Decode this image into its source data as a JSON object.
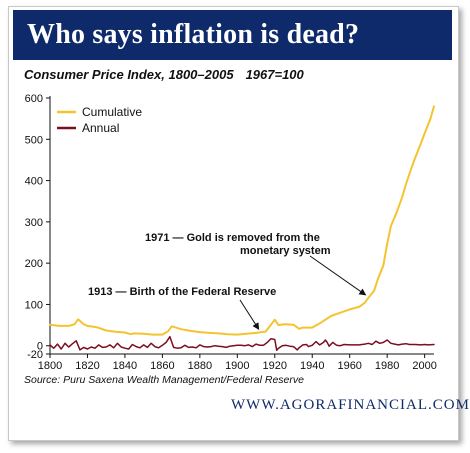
{
  "banner": {
    "title": "Who says inflation is dead?"
  },
  "header": {
    "chart_title": "Consumer Price Index, 1800–2005",
    "base_note": "1967=100"
  },
  "source": "Source: Puru Saxena Wealth Management/Federal Reserve",
  "footer": {
    "url": "WWW.AGORAFINANCIAL.COM"
  },
  "colors": {
    "banner": "#0f2a6b",
    "cumulative": "#f4c430",
    "annual": "#7a0f1f",
    "footer": "#0f2a6b"
  },
  "chart_data": {
    "type": "line",
    "title": "Consumer Price Index, 1800–2005",
    "subtitle": "1967=100",
    "xlabel": "",
    "ylabel": "",
    "xlim": [
      1800,
      2005
    ],
    "ylim": [
      -20,
      600
    ],
    "x_ticks": [
      1800,
      1820,
      1840,
      1860,
      1880,
      1900,
      1920,
      1940,
      1960,
      1980,
      2000
    ],
    "y_ticks": [
      -20,
      0,
      100,
      200,
      300,
      400,
      500,
      600
    ],
    "legend": {
      "position": "top-left",
      "entries": [
        "Cumulative",
        "Annual"
      ]
    },
    "grid": false,
    "series": [
      {
        "name": "Cumulative",
        "color": "#f4c430",
        "points": [
          [
            1800,
            51
          ],
          [
            1805,
            48
          ],
          [
            1810,
            48
          ],
          [
            1813,
            52
          ],
          [
            1815,
            64
          ],
          [
            1818,
            52
          ],
          [
            1820,
            48
          ],
          [
            1825,
            45
          ],
          [
            1830,
            37
          ],
          [
            1835,
            34
          ],
          [
            1840,
            32
          ],
          [
            1843,
            28
          ],
          [
            1845,
            30
          ],
          [
            1850,
            29
          ],
          [
            1855,
            27
          ],
          [
            1860,
            27
          ],
          [
            1863,
            35
          ],
          [
            1865,
            47
          ],
          [
            1870,
            40
          ],
          [
            1875,
            36
          ],
          [
            1880,
            33
          ],
          [
            1885,
            31
          ],
          [
            1890,
            30
          ],
          [
            1895,
            28
          ],
          [
            1900,
            27
          ],
          [
            1905,
            29
          ],
          [
            1910,
            31
          ],
          [
            1913,
            33
          ],
          [
            1915,
            34
          ],
          [
            1918,
            51
          ],
          [
            1920,
            63
          ],
          [
            1922,
            50
          ],
          [
            1925,
            52
          ],
          [
            1930,
            51
          ],
          [
            1933,
            41
          ],
          [
            1935,
            44
          ],
          [
            1940,
            44
          ],
          [
            1945,
            57
          ],
          [
            1950,
            72
          ],
          [
            1955,
            80
          ],
          [
            1960,
            88
          ],
          [
            1965,
            94
          ],
          [
            1968,
            104
          ],
          [
            1970,
            116
          ],
          [
            1973,
            133
          ],
          [
            1975,
            161
          ],
          [
            1978,
            195
          ],
          [
            1980,
            247
          ],
          [
            1982,
            290
          ],
          [
            1985,
            322
          ],
          [
            1988,
            360
          ],
          [
            1990,
            391
          ],
          [
            1993,
            431
          ],
          [
            1995,
            456
          ],
          [
            1998,
            490
          ],
          [
            2000,
            514
          ],
          [
            2003,
            549
          ],
          [
            2005,
            580
          ]
        ]
      },
      {
        "name": "Annual",
        "color": "#7a0f1f",
        "points": [
          [
            1800,
            2
          ],
          [
            1802,
            -6
          ],
          [
            1804,
            4
          ],
          [
            1806,
            -8
          ],
          [
            1808,
            6
          ],
          [
            1810,
            -3
          ],
          [
            1812,
            5
          ],
          [
            1814,
            12
          ],
          [
            1816,
            -10
          ],
          [
            1818,
            -4
          ],
          [
            1820,
            -8
          ],
          [
            1822,
            -3
          ],
          [
            1824,
            -6
          ],
          [
            1826,
            2
          ],
          [
            1828,
            -4
          ],
          [
            1830,
            -3
          ],
          [
            1832,
            2
          ],
          [
            1834,
            -5
          ],
          [
            1836,
            6
          ],
          [
            1838,
            -3
          ],
          [
            1840,
            -6
          ],
          [
            1842,
            -8
          ],
          [
            1844,
            3
          ],
          [
            1846,
            -2
          ],
          [
            1848,
            -5
          ],
          [
            1850,
            2
          ],
          [
            1852,
            -4
          ],
          [
            1854,
            6
          ],
          [
            1856,
            -2
          ],
          [
            1858,
            -5
          ],
          [
            1860,
            1
          ],
          [
            1862,
            8
          ],
          [
            1864,
            22
          ],
          [
            1866,
            -4
          ],
          [
            1868,
            -6
          ],
          [
            1870,
            -5
          ],
          [
            1872,
            1
          ],
          [
            1874,
            -4
          ],
          [
            1876,
            -3
          ],
          [
            1878,
            -5
          ],
          [
            1880,
            2
          ],
          [
            1882,
            -2
          ],
          [
            1884,
            -3
          ],
          [
            1886,
            -2
          ],
          [
            1888,
            0
          ],
          [
            1890,
            -1
          ],
          [
            1892,
            -2
          ],
          [
            1894,
            -4
          ],
          [
            1896,
            -1
          ],
          [
            1898,
            0
          ],
          [
            1900,
            1
          ],
          [
            1902,
            1
          ],
          [
            1904,
            0
          ],
          [
            1906,
            2
          ],
          [
            1908,
            -2
          ],
          [
            1910,
            4
          ],
          [
            1912,
            1
          ],
          [
            1914,
            1
          ],
          [
            1916,
            8
          ],
          [
            1918,
            17
          ],
          [
            1920,
            15
          ],
          [
            1921,
            -11
          ],
          [
            1922,
            -6
          ],
          [
            1924,
            0
          ],
          [
            1926,
            1
          ],
          [
            1928,
            -1
          ],
          [
            1930,
            -2
          ],
          [
            1932,
            -10
          ],
          [
            1933,
            -5
          ],
          [
            1935,
            2
          ],
          [
            1937,
            3
          ],
          [
            1938,
            -2
          ],
          [
            1940,
            1
          ],
          [
            1942,
            10
          ],
          [
            1944,
            2
          ],
          [
            1946,
            8
          ],
          [
            1947,
            14
          ],
          [
            1948,
            8
          ],
          [
            1949,
            -1
          ],
          [
            1951,
            8
          ],
          [
            1953,
            1
          ],
          [
            1955,
            0
          ],
          [
            1957,
            3
          ],
          [
            1960,
            2
          ],
          [
            1965,
            2
          ],
          [
            1968,
            4
          ],
          [
            1970,
            6
          ],
          [
            1972,
            3
          ],
          [
            1974,
            11
          ],
          [
            1976,
            6
          ],
          [
            1978,
            8
          ],
          [
            1980,
            14
          ],
          [
            1982,
            6
          ],
          [
            1984,
            4
          ],
          [
            1986,
            2
          ],
          [
            1988,
            4
          ],
          [
            1990,
            5
          ],
          [
            1992,
            3
          ],
          [
            1995,
            3
          ],
          [
            1998,
            2
          ],
          [
            2000,
            3
          ],
          [
            2002,
            2
          ],
          [
            2005,
            3
          ]
        ]
      }
    ],
    "annotations": [
      {
        "lines": [
          "1971 — Gold is removed from the",
          "monetary system"
        ],
        "target": [
          1970,
          116
        ]
      },
      {
        "lines": [
          "1913 — Birth of the Federal Reserve"
        ],
        "target": [
          1913,
          33
        ]
      }
    ]
  }
}
